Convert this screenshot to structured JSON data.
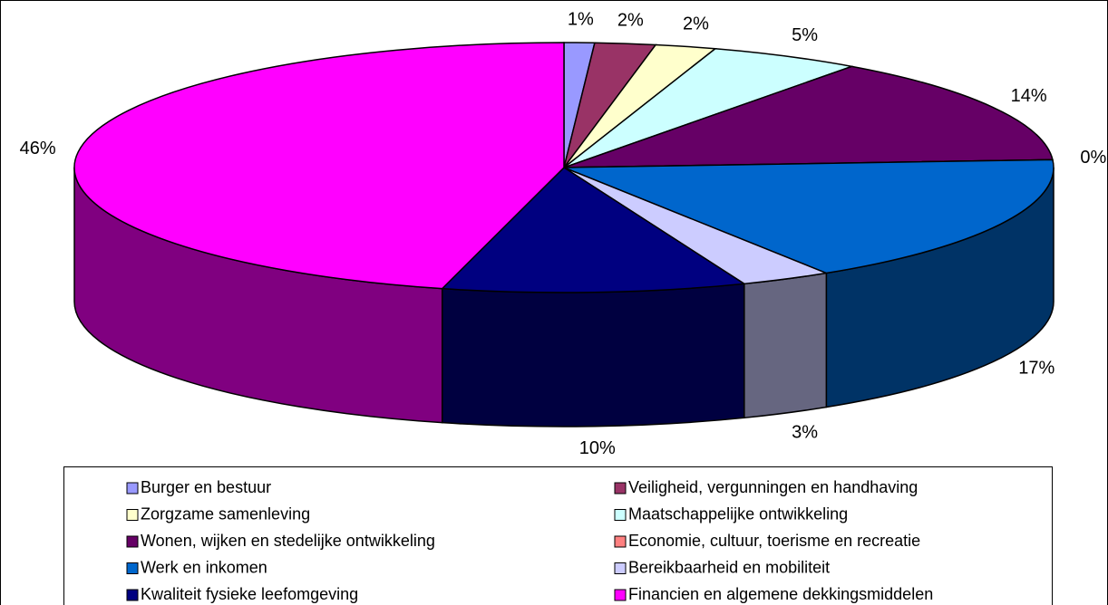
{
  "chart_data": {
    "type": "pie3d",
    "categories": [
      "Burger en bestuur",
      "Veiligheid, vergunningen en handhaving",
      "Zorgzame samenleving",
      "Maatschappelijke ontwikkeling",
      "Wonen, wijken en stedelijke ontwikkeling",
      "Economie, cultuur, toerisme en recreatie",
      "Werk en inkomen",
      "Bereikbaarheid en mobiliteit",
      "Kwaliteit fysieke leefomgeving",
      "Financien en algemene dekkingsmiddelen"
    ],
    "values": [
      1,
      2,
      2,
      5,
      14,
      0,
      17,
      3,
      10,
      46
    ],
    "value_labels": [
      "1%",
      "2%",
      "2%",
      "5%",
      "14%",
      "0%",
      "17%",
      "3%",
      "10%",
      "46%"
    ],
    "colors": [
      "#9999ff",
      "#993366",
      "#ffffcc",
      "#ccffff",
      "#660066",
      "#ff8080",
      "#0066cc",
      "#ccccff",
      "#000080",
      "#ff00ff"
    ],
    "legend": "bottom"
  }
}
